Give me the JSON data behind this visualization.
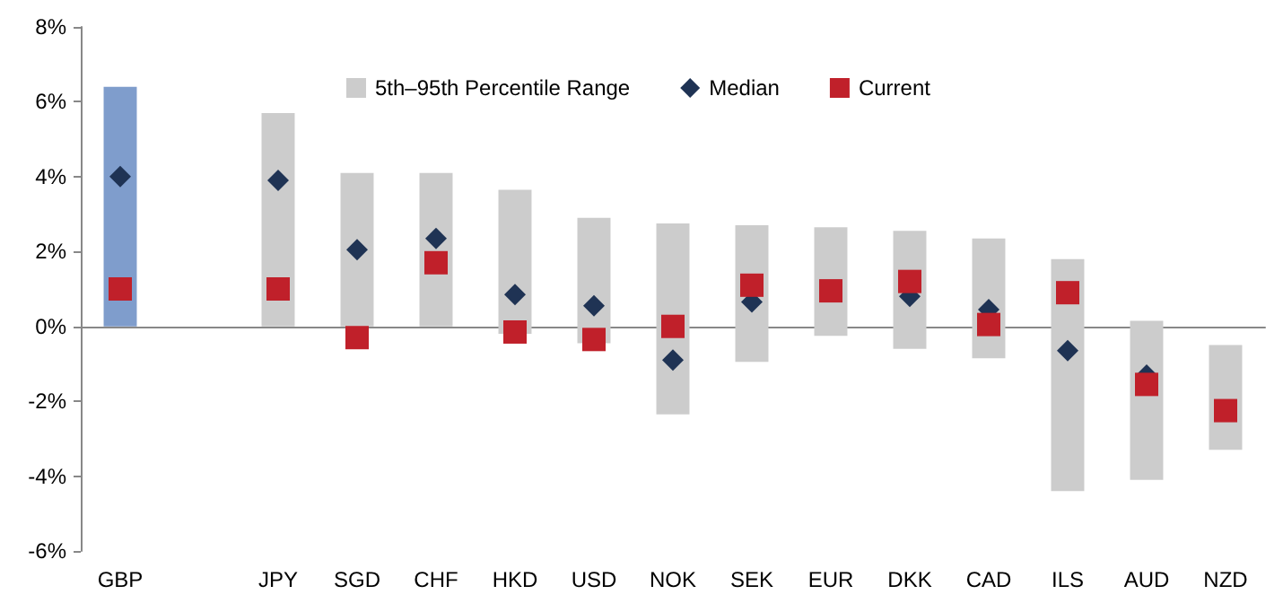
{
  "chart_data": {
    "type": "bar",
    "categories": [
      "GBP",
      null,
      "JPY",
      "SGD",
      "CHF",
      "HKD",
      "USD",
      "NOK",
      "SEK",
      "EUR",
      "DKK",
      "CAD",
      "ILS",
      "AUD",
      "NZD"
    ],
    "series": [
      {
        "name": "5th–95th Percentile Range",
        "color": "#cccccc",
        "colors": [
          "#7f9dcc",
          null,
          "#cccccc",
          "#cccccc",
          "#cccccc",
          "#cccccc",
          "#cccccc",
          "#cccccc",
          "#cccccc",
          "#cccccc",
          "#cccccc",
          "#cccccc",
          "#cccccc",
          "#cccccc",
          "#cccccc"
        ],
        "base": [
          0,
          null,
          0,
          0,
          0,
          -0.2,
          -0.45,
          -2.35,
          -0.95,
          -0.25,
          -0.6,
          -0.85,
          -4.4,
          -4.1,
          -3.3
        ],
        "values": [
          6.4,
          null,
          5.7,
          4.1,
          4.1,
          3.85,
          3.35,
          5.1,
          3.65,
          2.9,
          3.15,
          3.2,
          6.2,
          4.25,
          2.8
        ]
      },
      {
        "name": "Median",
        "type": "scatter",
        "marker": "diamond",
        "color": "#1f3354",
        "values": [
          4.0,
          null,
          3.9,
          2.05,
          2.35,
          0.85,
          0.55,
          -0.9,
          0.65,
          null,
          0.8,
          0.45,
          -0.65,
          -1.3,
          null
        ]
      },
      {
        "name": "Current",
        "type": "scatter",
        "marker": "square",
        "color": "#c0202a",
        "values": [
          1.0,
          null,
          1.0,
          -0.3,
          1.7,
          -0.15,
          -0.35,
          0.0,
          1.1,
          0.95,
          1.2,
          0.05,
          0.9,
          -1.55,
          -2.25
        ]
      }
    ],
    "ylim": [
      -6,
      8
    ],
    "yticks": [
      {
        "value": -6,
        "label": "-6%"
      },
      {
        "value": -4,
        "label": "-4%"
      },
      {
        "value": -2,
        "label": "-2%"
      },
      {
        "value": 0,
        "label": "0%"
      },
      {
        "value": 2,
        "label": "2%"
      },
      {
        "value": 4,
        "label": "4%"
      },
      {
        "value": 6,
        "label": "6%"
      },
      {
        "value": 8,
        "label": "8%"
      }
    ],
    "legend": "top"
  }
}
